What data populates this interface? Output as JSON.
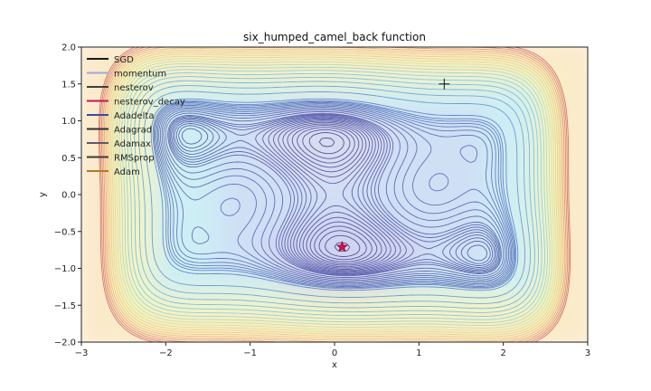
{
  "chart_data": {
    "type": "contour",
    "title": "six_humped_camel_back function",
    "xlabel": "x",
    "ylabel": "y",
    "xlim": [
      -3,
      3
    ],
    "ylim": [
      -2,
      2
    ],
    "xticks": [
      "−3",
      "−2",
      "−1",
      "0",
      "1",
      "2",
      "3"
    ],
    "yticks": [
      "−2.0",
      "−1.5",
      "−1.0",
      "−0.5",
      "0.0",
      "0.5",
      "1.0",
      "1.5",
      "2.0"
    ],
    "xtick_values": [
      -3,
      -2,
      -1,
      0,
      1,
      2,
      3
    ],
    "ytick_values": [
      -2.0,
      -1.5,
      -1.0,
      -0.5,
      0.0,
      0.5,
      1.0,
      1.5,
      2.0
    ],
    "legend_placement": "top-left",
    "series": [
      {
        "name": "SGD",
        "color": "#1a1a1a"
      },
      {
        "name": "momentum",
        "color": "#9aa9d8"
      },
      {
        "name": "nesterov",
        "color": "#404040"
      },
      {
        "name": "nesterov_decay",
        "color": "#c2185b"
      },
      {
        "name": "Adadelta",
        "color": "#3b4aa0"
      },
      {
        "name": "Adagrad",
        "color": "#2e2e2e"
      },
      {
        "name": "Adamax",
        "color": "#5a5a6a"
      },
      {
        "name": "RMSprop",
        "color": "#3a3a3a"
      },
      {
        "name": "Adam",
        "color": "#b07a20"
      }
    ],
    "start_point": {
      "x": 1.3,
      "y": 1.5
    },
    "end_point": {
      "x": 0.09,
      "y": -0.71
    },
    "minima": [
      {
        "x": -0.09,
        "y": 0.71
      },
      {
        "x": 0.09,
        "y": -0.71
      },
      {
        "x": -1.7,
        "y": 0.8
      },
      {
        "x": 1.7,
        "y": -0.8
      }
    ]
  }
}
